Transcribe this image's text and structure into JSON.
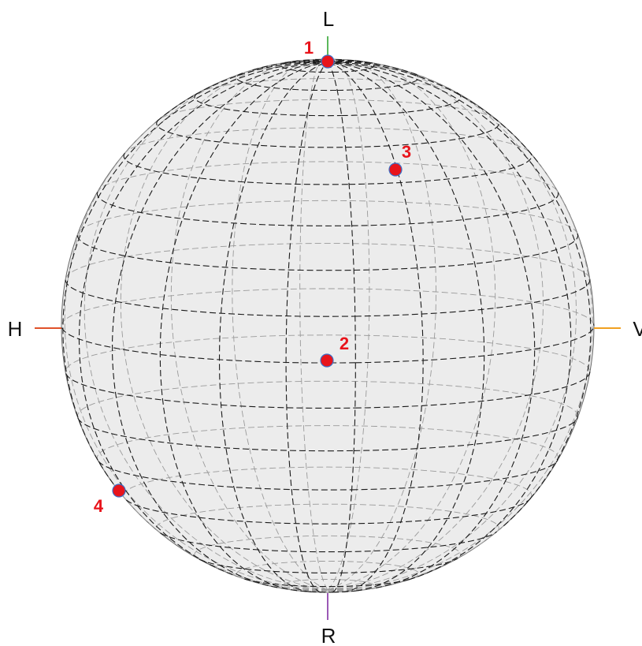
{
  "axes": {
    "top": {
      "label": "L",
      "color": "#5cb85c"
    },
    "bottom": {
      "label": "R",
      "color": "#9b59b6"
    },
    "left": {
      "label": "H",
      "color": "#e0522a"
    },
    "right": {
      "label": "V",
      "color": "#f0a020"
    }
  },
  "sphere": {
    "fill": "#ececec",
    "grid_color": "#1a1a1a",
    "back_grid_color": "#9a9a9a"
  },
  "points": [
    {
      "id": "point-1",
      "label": "1",
      "color": "#e8141b"
    },
    {
      "id": "point-2",
      "label": "2",
      "color": "#e8141b"
    },
    {
      "id": "point-3",
      "label": "3",
      "color": "#e8141b"
    },
    {
      "id": "point-4",
      "label": "4",
      "color": "#e8141b"
    }
  ]
}
